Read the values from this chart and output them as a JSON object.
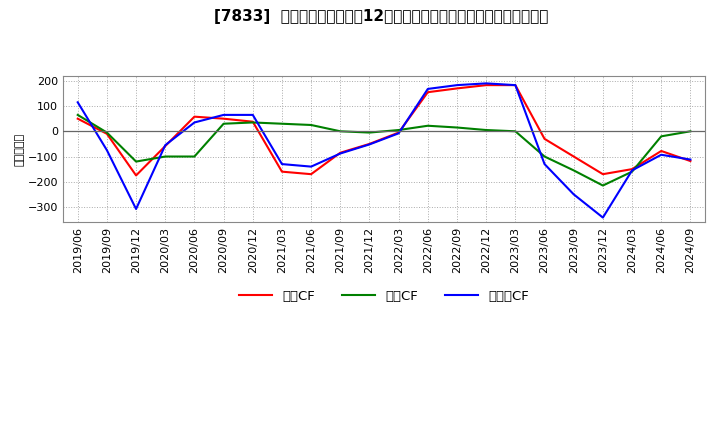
{
  "title": "[7833]  キャッシュフローの12か月移動合計の対前年同期増減額の推移",
  "ylabel": "（百万円）",
  "x_labels": [
    "2019/06",
    "2019/09",
    "2019/12",
    "2020/03",
    "2020/06",
    "2020/09",
    "2020/12",
    "2021/03",
    "2021/06",
    "2021/09",
    "2021/12",
    "2022/03",
    "2022/06",
    "2022/09",
    "2022/12",
    "2023/03",
    "2023/06",
    "2023/09",
    "2023/12",
    "2024/03",
    "2024/06",
    "2024/09"
  ],
  "series": [
    {
      "name": "営業CF",
      "color": "#ff0000",
      "values": [
        50,
        -10,
        -175,
        null,
        58,
        50,
        38,
        -160,
        -170,
        -85,
        -50,
        -5,
        155,
        170,
        183,
        183,
        -30,
        -100,
        -170,
        -150,
        -78,
        -118
      ]
    },
    {
      "name": "投資CF",
      "color": "#008000",
      "values": [
        65,
        -5,
        -120,
        -100,
        -100,
        30,
        35,
        30,
        25,
        0,
        -5,
        5,
        22,
        15,
        5,
        0,
        -100,
        -155,
        -215,
        -160,
        -20,
        0
      ]
    },
    {
      "name": "フリーCF",
      "color": "#0000ff",
      "values": [
        115,
        -75,
        -308,
        -55,
        35,
        65,
        65,
        -130,
        -140,
        -88,
        -52,
        -8,
        168,
        183,
        190,
        183,
        -130,
        -250,
        -342,
        -155,
        -93,
        -112
      ]
    }
  ],
  "ylim": [
    -360,
    220
  ],
  "yticks": [
    -300,
    -200,
    -100,
    0,
    100,
    200
  ],
  "background_color": "#ffffff",
  "grid_color": "#aaaaaa",
  "title_fontsize": 11,
  "legend_fontsize": 9.5,
  "tick_fontsize": 8,
  "ylabel_fontsize": 8,
  "linewidth": 1.5
}
